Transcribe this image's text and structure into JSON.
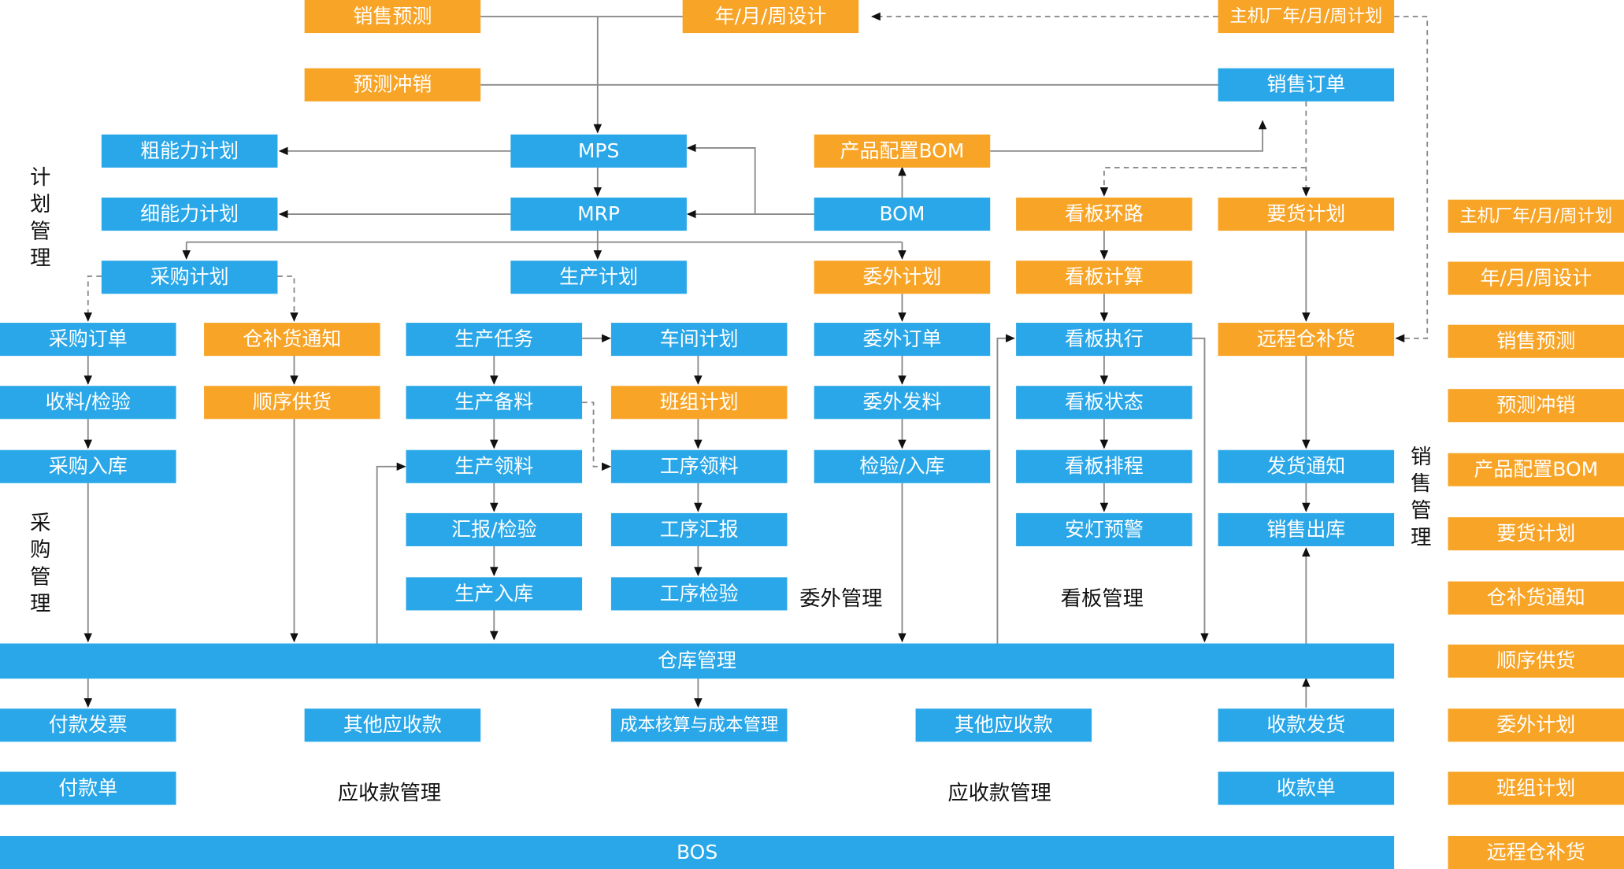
{
  "nodes": {
    "xssc": "销售预测",
    "nyzsj": "年/月/周设计",
    "zjcnyz": "主机厂年/月/周计划",
    "ycxcx": "预测冲销",
    "xsdd": "销售订单",
    "cnljh": "粗能力计划",
    "mps": "MPS",
    "cppzbom": "产品配置BOM",
    "xnljh": "细能力计划",
    "mrp": "MRP",
    "bom": "BOM",
    "kbhl": "看板环路",
    "yhjh": "要货计划",
    "cgjh": "采购计划",
    "scjh": "生产计划",
    "wwjh": "委外计划",
    "kbjs": "看板计算",
    "cgdd": "采购订单",
    "cbhtz": "仓补货通知",
    "scrw": "生产任务",
    "cjjh": "车间计划",
    "wwdd": "委外订单",
    "kbzx": "看板执行",
    "yccbh": "远程仓补货",
    "slj": "收料/检验",
    "sxgh": "顺序供货",
    "scbl": "生产备料",
    "bzjh": "班组计划",
    "wwfl": "委外发料",
    "kbzt": "看板状态",
    "cgrk": "采购入库",
    "scll": "生产领料",
    "gxll": "工序领料",
    "jyrk": "检验/入库",
    "kbpc": "看板排程",
    "fhtz": "发货通知",
    "hbjy": "汇报/检验",
    "gxhb": "工序汇报",
    "adyj": "安灯预警",
    "xsck": "销售出库",
    "scrk": "生产入库",
    "gxjy": "工序检验",
    "ckgl": "仓库管理",
    "fkfp": "付款发票",
    "qtysk1": "其他应收款",
    "cbhs": "成本核算与成本管理",
    "qtysk2": "其他应收款",
    "skfh": "收款发货",
    "fkd": "付款单",
    "skd": "收款单",
    "bos": "BOS"
  },
  "section_labels": {
    "jhgl": "计\n划\n管\n理",
    "cggl": "采\n购\n管\n理",
    "xsgl": "销\n售\n管\n理",
    "wwgl": "委外管理",
    "kbgl": "看板管理",
    "yskgl1": "应收款管理",
    "yskgl2": "应收款管理"
  },
  "legend": [
    "主机厂年/月/周计划",
    "年/月/周设计",
    "销售预测",
    "预测冲销",
    "产品配置BOM",
    "要货计划",
    "仓补货通知",
    "顺序供货",
    "委外计划",
    "班组计划",
    "远程仓补货"
  ],
  "colors": {
    "blue": "#29a7e8",
    "orange": "#f8a426",
    "connector": "#8a8a8a",
    "arrowhead": "#111111"
  }
}
